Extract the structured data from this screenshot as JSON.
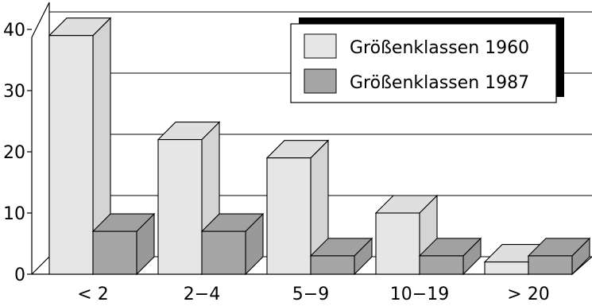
{
  "chart_data": {
    "type": "bar",
    "style": "3d",
    "categories": [
      "< 2",
      "2−4",
      "5−9",
      "10−19",
      "> 20"
    ],
    "series": [
      {
        "name": "Größenklassen 1960",
        "values": [
          39,
          22,
          19,
          10,
          2
        ],
        "color": "#e6e6e6"
      },
      {
        "name": "Größenklassen 1987",
        "values": [
          7,
          7,
          3,
          3,
          3
        ],
        "color": "#a6a6a6"
      }
    ],
    "yticks": [
      0,
      10,
      20,
      30,
      40
    ],
    "ylim": [
      0,
      40
    ],
    "grid": true,
    "legend_position": "top-right"
  }
}
